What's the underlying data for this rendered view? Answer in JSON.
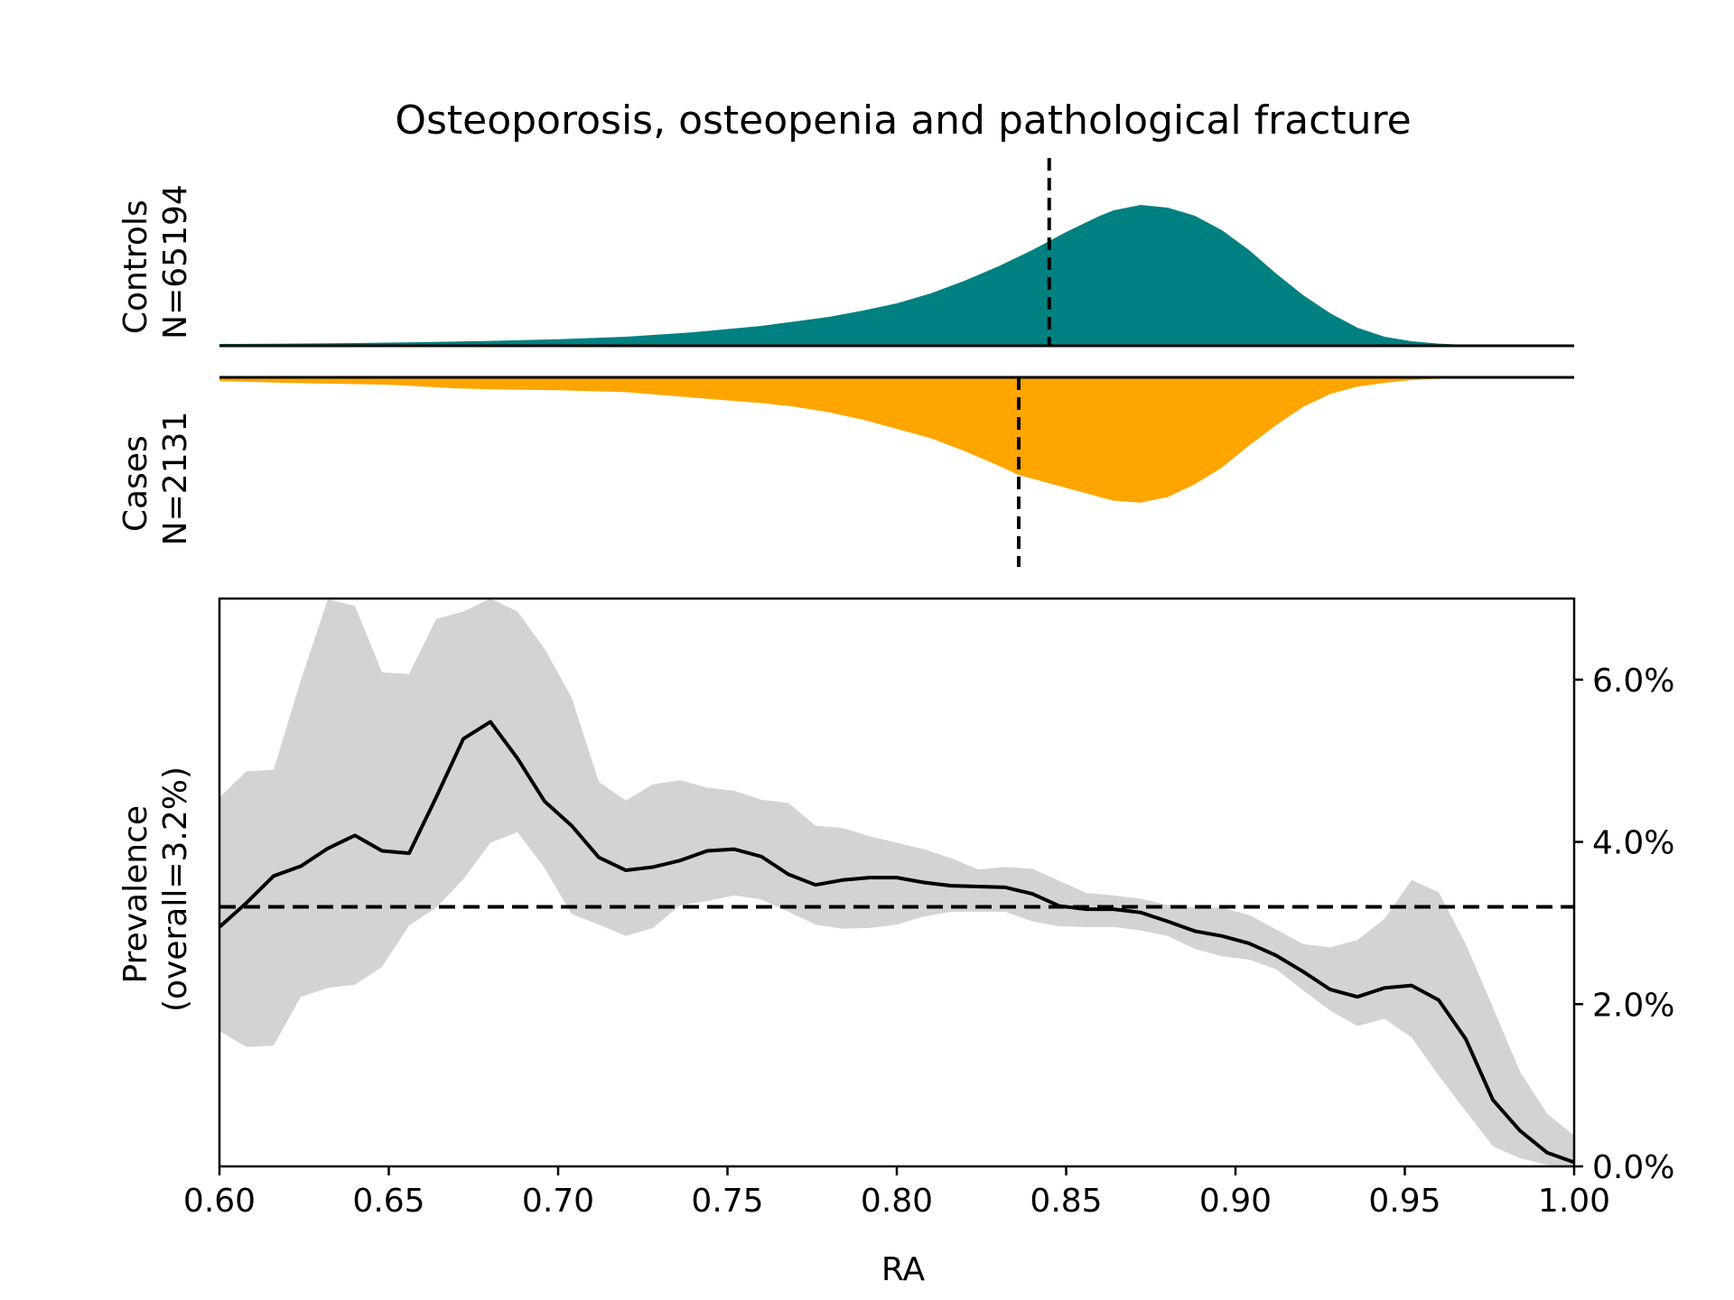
{
  "chart_data": {
    "type": "area",
    "title": "Osteoporosis, osteopenia and pathological fracture",
    "x_range": [
      0.6,
      1.0
    ],
    "panels": {
      "controls": {
        "label_line1": "Controls",
        "label_line2": "N=65194",
        "color": "#008080",
        "mean_line_x": 0.845,
        "density": {
          "x": [
            0.6,
            0.62,
            0.64,
            0.66,
            0.68,
            0.7,
            0.72,
            0.74,
            0.76,
            0.78,
            0.79,
            0.8,
            0.81,
            0.82,
            0.83,
            0.84,
            0.85,
            0.86,
            0.864,
            0.872,
            0.88,
            0.888,
            0.896,
            0.904,
            0.912,
            0.92,
            0.928,
            0.936,
            0.944,
            0.952,
            0.96,
            0.968,
            0.976,
            0.984,
            0.992,
            1.0
          ],
          "y": [
            0.01,
            0.012,
            0.015,
            0.02,
            0.027,
            0.036,
            0.05,
            0.075,
            0.11,
            0.16,
            0.195,
            0.235,
            0.29,
            0.36,
            0.44,
            0.53,
            0.63,
            0.72,
            0.75,
            0.78,
            0.765,
            0.72,
            0.64,
            0.53,
            0.4,
            0.28,
            0.18,
            0.1,
            0.05,
            0.025,
            0.012,
            0.005,
            0.002,
            0.001,
            0.0005,
            0.0
          ]
        }
      },
      "cases": {
        "label_line1": "Cases",
        "label_line2": "N=2131",
        "color": "#FFA500",
        "mean_line_x": 0.836,
        "density": {
          "x": [
            0.6,
            0.62,
            0.65,
            0.67,
            0.68,
            0.7,
            0.72,
            0.74,
            0.76,
            0.77,
            0.78,
            0.79,
            0.8,
            0.81,
            0.82,
            0.83,
            0.836,
            0.84,
            0.85,
            0.86,
            0.864,
            0.872,
            0.88,
            0.888,
            0.896,
            0.904,
            0.912,
            0.92,
            0.928,
            0.936,
            0.944,
            0.952,
            0.96,
            0.968,
            0.976,
            0.984,
            1.0
          ],
          "y": [
            0.02,
            0.03,
            0.04,
            0.06,
            0.065,
            0.07,
            0.08,
            0.11,
            0.14,
            0.16,
            0.19,
            0.23,
            0.28,
            0.33,
            0.4,
            0.48,
            0.53,
            0.55,
            0.6,
            0.65,
            0.67,
            0.68,
            0.65,
            0.58,
            0.49,
            0.37,
            0.26,
            0.16,
            0.09,
            0.05,
            0.03,
            0.015,
            0.008,
            0.004,
            0.002,
            0.001,
            0.0
          ]
        }
      }
    },
    "prevalence": {
      "ylabel_line1": "Prevalence",
      "ylabel_line2": "(overall=3.2%)",
      "xlabel": "RA",
      "overall": 3.2,
      "ylim": [
        0,
        7.0
      ],
      "xticks": [
        "0.60",
        "0.65",
        "0.70",
        "0.75",
        "0.80",
        "0.85",
        "0.90",
        "0.95",
        "1.00"
      ],
      "xtick_values": [
        0.6,
        0.65,
        0.7,
        0.75,
        0.8,
        0.85,
        0.9,
        0.95,
        1.0
      ],
      "yticks": [
        "0.0%",
        "2.0%",
        "4.0%",
        "6.0%"
      ],
      "ytick_values": [
        0,
        2,
        4,
        6
      ],
      "line_color": "#000000",
      "band_color": "#D3D3D3",
      "x": [
        0.6,
        0.608,
        0.616,
        0.624,
        0.632,
        0.64,
        0.648,
        0.656,
        0.664,
        0.672,
        0.68,
        0.688,
        0.696,
        0.704,
        0.712,
        0.72,
        0.728,
        0.736,
        0.744,
        0.752,
        0.76,
        0.768,
        0.776,
        0.784,
        0.792,
        0.8,
        0.808,
        0.816,
        0.824,
        0.832,
        0.84,
        0.848,
        0.856,
        0.864,
        0.872,
        0.88,
        0.888,
        0.896,
        0.904,
        0.912,
        0.92,
        0.928,
        0.936,
        0.944,
        0.952,
        0.96,
        0.968,
        0.976,
        0.984,
        0.992,
        1.0
      ],
      "estimate": [
        2.95,
        3.25,
        3.58,
        3.7,
        3.92,
        4.08,
        3.89,
        3.86,
        4.55,
        5.27,
        5.48,
        5.03,
        4.5,
        4.2,
        3.81,
        3.65,
        3.69,
        3.77,
        3.89,
        3.91,
        3.82,
        3.6,
        3.47,
        3.53,
        3.56,
        3.56,
        3.5,
        3.46,
        3.45,
        3.44,
        3.36,
        3.21,
        3.17,
        3.17,
        3.13,
        3.02,
        2.9,
        2.84,
        2.75,
        2.6,
        2.4,
        2.18,
        2.09,
        2.2,
        2.23,
        2.05,
        1.57,
        0.82,
        0.44,
        0.17,
        0.05
      ],
      "lower": [
        1.67,
        1.47,
        1.49,
        2.09,
        2.2,
        2.24,
        2.46,
        2.97,
        3.19,
        3.54,
        3.99,
        4.12,
        3.68,
        3.11,
        2.98,
        2.84,
        2.94,
        3.22,
        3.27,
        3.34,
        3.29,
        3.14,
        2.98,
        2.93,
        2.94,
        2.98,
        3.08,
        3.14,
        3.14,
        3.14,
        3.02,
        2.96,
        2.95,
        2.95,
        2.91,
        2.84,
        2.68,
        2.59,
        2.55,
        2.43,
        2.17,
        1.92,
        1.73,
        1.82,
        1.59,
        1.12,
        0.68,
        0.25,
        0.1,
        0.02,
        0.0
      ],
      "upper": [
        4.55,
        4.87,
        4.89,
        5.99,
        6.99,
        6.91,
        6.09,
        6.07,
        6.75,
        6.84,
        7.14,
        6.84,
        6.38,
        5.78,
        4.74,
        4.51,
        4.71,
        4.76,
        4.67,
        4.63,
        4.52,
        4.48,
        4.2,
        4.17,
        4.07,
        3.99,
        3.91,
        3.8,
        3.66,
        3.69,
        3.67,
        3.52,
        3.37,
        3.34,
        3.3,
        3.22,
        3.19,
        3.19,
        3.1,
        2.92,
        2.74,
        2.7,
        2.79,
        3.05,
        3.53,
        3.38,
        2.74,
        1.96,
        1.17,
        0.65,
        0.38
      ]
    }
  }
}
